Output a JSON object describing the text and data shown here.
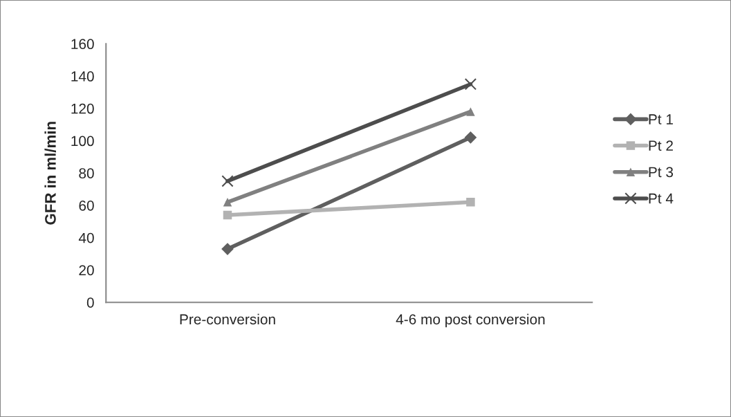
{
  "chart_data": {
    "type": "line",
    "ylabel": "GFR in ml/min",
    "categories": [
      "Pre-conversion",
      "4-6 mo post conversion"
    ],
    "series": [
      {
        "name": "Pt 1",
        "color": "#5f5f5f",
        "marker": "diamond",
        "values": [
          33,
          102
        ]
      },
      {
        "name": "Pt 2",
        "color": "#b2b2b2",
        "marker": "square",
        "values": [
          54,
          62
        ]
      },
      {
        "name": "Pt 3",
        "color": "#808080",
        "marker": "triangle",
        "values": [
          62,
          118
        ]
      },
      {
        "name": "Pt 4",
        "color": "#4d4d4d",
        "marker": "cross",
        "values": [
          75,
          135
        ]
      }
    ],
    "ylim": [
      0,
      160
    ],
    "yticks": [
      0,
      20,
      40,
      60,
      80,
      100,
      120,
      140,
      160
    ],
    "grid": false,
    "legend": "right",
    "line_style": "solid"
  }
}
